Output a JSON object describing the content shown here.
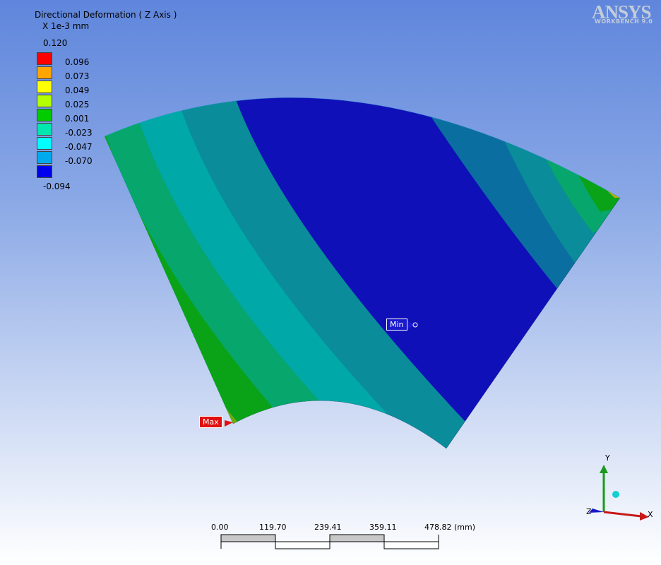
{
  "title": "Directional Deformation ( Z Axis )",
  "units": "X 1e-3 mm",
  "legend": {
    "top": "0.120",
    "bottom": "-0.094",
    "items": [
      {
        "color": "#ff0000",
        "label": "0.096"
      },
      {
        "color": "#ffa500",
        "label": "0.073"
      },
      {
        "color": "#ffff00",
        "label": "0.049"
      },
      {
        "color": "#b4ff00",
        "label": "0.025"
      },
      {
        "color": "#00cc00",
        "label": "0.001"
      },
      {
        "color": "#00e8b0",
        "label": "-0.023"
      },
      {
        "color": "#00ffff",
        "label": "-0.047"
      },
      {
        "color": "#00aaee",
        "label": "-0.070"
      },
      {
        "color": "#0000ee",
        "label": ""
      }
    ]
  },
  "logo": {
    "name": "ANSYS",
    "sub": "WORKBENCH 9.0"
  },
  "probes": {
    "max": "Max",
    "min": "Min"
  },
  "scale_bar": {
    "ticks": [
      "0.00",
      "119.70",
      "239.41",
      "359.11",
      "478.82 (mm)"
    ]
  },
  "triad": {
    "x": "X",
    "y": "Y",
    "z": "Z"
  }
}
